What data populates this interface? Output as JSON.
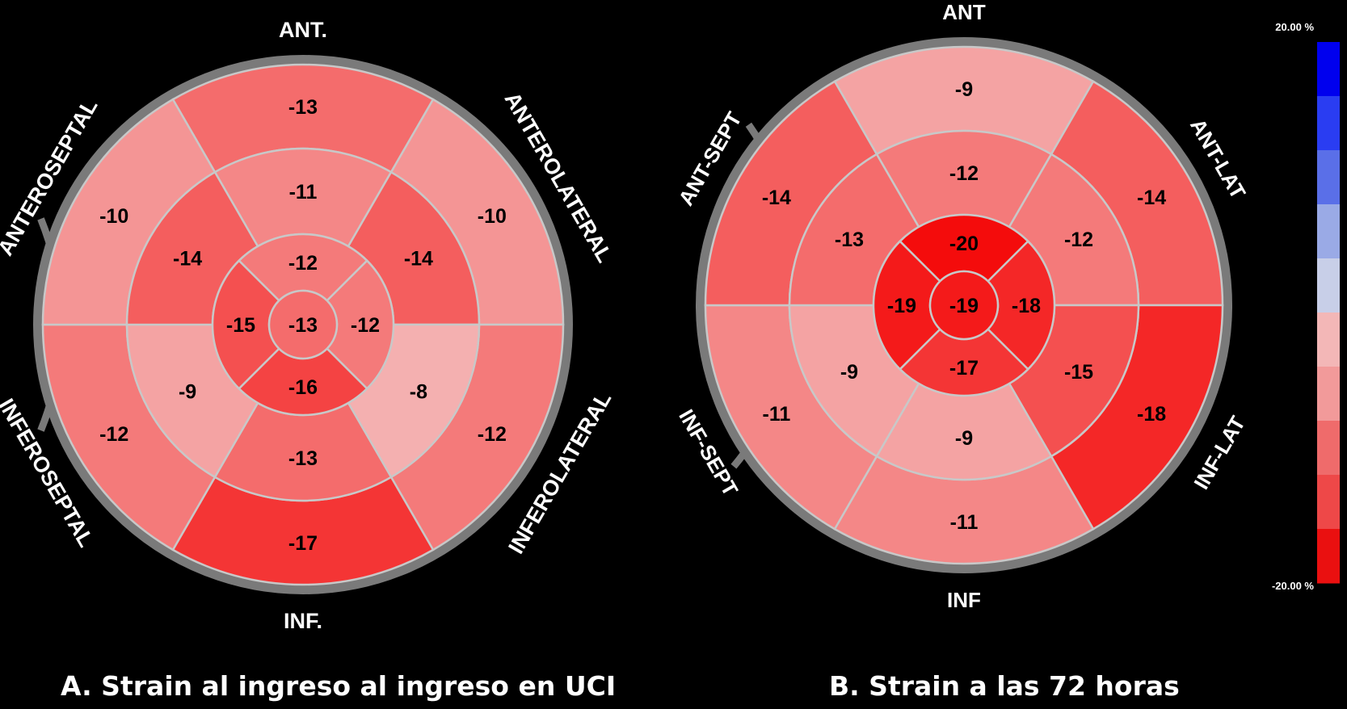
{
  "panel_a": {
    "caption": "A. Strain al ingreso al ingreso en UCI",
    "wall_labels": [
      "ANT.",
      "ANTEROLATERAL",
      "INFEROLATERAL",
      "INF.",
      "INFEROSEPTAL",
      "ANTEROSEPTAL"
    ],
    "values": {
      "basal": [
        -13,
        -10,
        -12,
        -17,
        -12,
        -10
      ],
      "mid": [
        -11,
        -14,
        -8,
        -13,
        -9,
        -14
      ],
      "apical": [
        -12,
        -12,
        -16,
        -15
      ],
      "apex": -13
    }
  },
  "panel_b": {
    "caption": "B. Strain a las 72 horas",
    "wall_labels": [
      "ANT",
      "ANT-LAT",
      "INF-LAT",
      "INF",
      "INF-SEPT",
      "ANT-SEPT"
    ],
    "values": {
      "basal": [
        -9,
        -14,
        -18,
        -11,
        -11,
        -14
      ],
      "mid": [
        -12,
        -12,
        -15,
        -9,
        -9,
        -13
      ],
      "apical": [
        -20,
        -18,
        -17,
        -19
      ],
      "apex": -19
    }
  },
  "colorbar": {
    "max_label": "20.00 %",
    "min_label": "-20.00 %",
    "colors": [
      "#0000ee",
      "#2a3df2",
      "#5a6fe8",
      "#9aaae6",
      "#c8cfe8",
      "#f3b7b7",
      "#f29a9a",
      "#ef6b6b",
      "#ee4848",
      "#ea1010"
    ]
  }
}
